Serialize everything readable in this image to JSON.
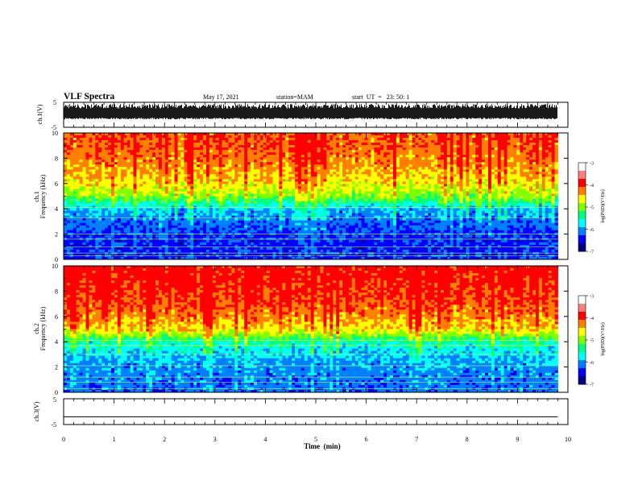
{
  "header": {
    "title": "VLF Spectra",
    "date": "May 17, 2021",
    "station": "station=MAM",
    "start": "start  UT  =   23: 50: 1"
  },
  "colors": {
    "colormap": [
      "#000080",
      "#0000ff",
      "#0080ff",
      "#00ffff",
      "#00ff80",
      "#80ff00",
      "#ffff00",
      "#ff8000",
      "#ff0000"
    ],
    "trace": "#000000",
    "frame": "#000000"
  },
  "chart_data": [
    {
      "type": "line",
      "panel": "ch1-waveform",
      "ylabel": "ch.1(V)",
      "ylim": [
        -5,
        5
      ],
      "yticks": [
        "5",
        "-5"
      ],
      "xlim": [
        0,
        10
      ],
      "description_values": {
        "typical_range": [
          -1.2,
          2.5
        ]
      }
    },
    {
      "type": "heatmap",
      "panel": "ch1-spectrogram",
      "ylabel": "ch.1\nFrequency  (kHz)",
      "ylabel_lines": [
        "ch.1",
        "Frequency  (kHz)"
      ],
      "ylim": [
        0,
        10
      ],
      "yticks": [
        "0",
        "2",
        "4",
        "6",
        "8",
        "10"
      ],
      "xlim": [
        0,
        10
      ],
      "colorbar": {
        "label": "log(PSD)(V²/Hz)",
        "range": [
          -7,
          -3
        ],
        "ticks": [
          "-3",
          "-4",
          "-5",
          "-6",
          "-7"
        ]
      },
      "color_levels_by_freq_khz": [
        [
          0,
          1.2
        ],
        [
          1,
          1.1
        ],
        [
          2,
          1.3
        ],
        [
          3,
          1.8
        ],
        [
          4,
          2.5
        ],
        [
          4.5,
          3.8
        ],
        [
          5,
          5.0
        ],
        [
          6,
          6.0
        ],
        [
          7,
          6.6
        ],
        [
          8,
          7.0
        ],
        [
          9,
          7.3
        ],
        [
          10,
          7.4
        ]
      ]
    },
    {
      "type": "heatmap",
      "panel": "ch2-spectrogram",
      "ylabel": "ch.2\nFrequency  (kHz)",
      "ylabel_lines": [
        "ch.2",
        "Frequency  (kHz)"
      ],
      "ylim": [
        0,
        10
      ],
      "yticks": [
        "0",
        "2",
        "4",
        "6",
        "8",
        "10"
      ],
      "xlim": [
        0,
        10
      ],
      "colorbar": {
        "label": "log(PSD)(V²/Hz)",
        "range": [
          -7,
          -3
        ],
        "ticks": [
          "-3",
          "-4",
          "-5",
          "-6",
          "-7"
        ]
      },
      "color_levels_by_freq_khz": [
        [
          0,
          1.8
        ],
        [
          1,
          1.9
        ],
        [
          2,
          2.1
        ],
        [
          3,
          2.6
        ],
        [
          4,
          3.6
        ],
        [
          4.5,
          5.0
        ],
        [
          5,
          6.2
        ],
        [
          6,
          7.0
        ],
        [
          7,
          7.5
        ],
        [
          8,
          7.8
        ],
        [
          9,
          8.0
        ],
        [
          10,
          8.0
        ]
      ]
    },
    {
      "type": "line",
      "panel": "ch3-waveform",
      "ylabel": "ch.3(V)",
      "ylim": [
        -5,
        5
      ],
      "yticks": [
        "5",
        "0",
        "-5"
      ],
      "xlim": [
        0,
        10
      ],
      "values": [
        -2,
        -2
      ],
      "x": [
        0,
        9.8
      ]
    }
  ],
  "xaxis": {
    "label": "Time  (min)",
    "ticks": [
      "0",
      "1",
      "2",
      "3",
      "4",
      "5",
      "6",
      "7",
      "8",
      "9",
      "10"
    ],
    "range": [
      0,
      10
    ],
    "data_end": 9.8
  }
}
